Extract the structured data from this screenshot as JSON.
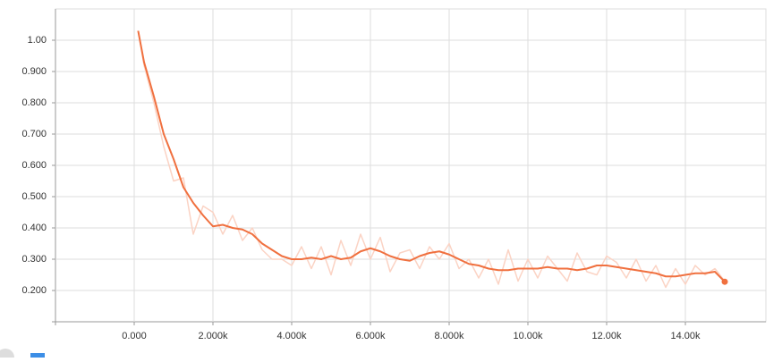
{
  "chart_data": {
    "type": "line",
    "x": [
      100,
      250,
      500,
      750,
      1000,
      1250,
      1500,
      1750,
      2000,
      2250,
      2500,
      2750,
      3000,
      3250,
      3500,
      3750,
      4000,
      4250,
      4500,
      4750,
      5000,
      5250,
      5500,
      5750,
      6000,
      6250,
      6500,
      6750,
      7000,
      7250,
      7500,
      7750,
      8000,
      8250,
      8500,
      8750,
      9000,
      9250,
      9500,
      9750,
      10000,
      10250,
      10500,
      10750,
      11000,
      11250,
      11500,
      11750,
      12000,
      12250,
      12500,
      12750,
      13000,
      13250,
      13500,
      13750,
      14000,
      14250,
      14500,
      14750,
      15000
    ],
    "series": [
      {
        "color": "#fbd3c4",
        "values": [
          1.03,
          0.92,
          0.8,
          0.66,
          0.55,
          0.56,
          0.38,
          0.47,
          0.45,
          0.38,
          0.44,
          0.36,
          0.4,
          0.33,
          0.3,
          0.3,
          0.28,
          0.34,
          0.27,
          0.34,
          0.25,
          0.36,
          0.28,
          0.38,
          0.3,
          0.37,
          0.26,
          0.32,
          0.33,
          0.27,
          0.34,
          0.3,
          0.35,
          0.27,
          0.3,
          0.24,
          0.3,
          0.22,
          0.33,
          0.23,
          0.3,
          0.24,
          0.31,
          0.27,
          0.23,
          0.32,
          0.26,
          0.25,
          0.31,
          0.29,
          0.24,
          0.3,
          0.23,
          0.28,
          0.21,
          0.27,
          0.22,
          0.28,
          0.25,
          0.27,
          0.23
        ]
      },
      {
        "color": "#f0703f",
        "values": [
          1.03,
          0.93,
          0.82,
          0.7,
          0.62,
          0.53,
          0.48,
          0.44,
          0.405,
          0.41,
          0.4,
          0.395,
          0.38,
          0.35,
          0.33,
          0.31,
          0.3,
          0.3,
          0.305,
          0.3,
          0.31,
          0.3,
          0.305,
          0.325,
          0.335,
          0.325,
          0.31,
          0.3,
          0.295,
          0.31,
          0.32,
          0.325,
          0.315,
          0.3,
          0.285,
          0.28,
          0.27,
          0.265,
          0.265,
          0.27,
          0.27,
          0.27,
          0.275,
          0.27,
          0.27,
          0.265,
          0.27,
          0.28,
          0.28,
          0.275,
          0.27,
          0.265,
          0.26,
          0.255,
          0.245,
          0.245,
          0.25,
          0.255,
          0.255,
          0.26,
          0.228
        ]
      }
    ],
    "xlim": [
      -2000,
      16045
    ],
    "ylim": [
      0.1,
      1.1
    ],
    "xticks": [
      {
        "value": 0,
        "label": "0.000"
      },
      {
        "value": 2000,
        "label": "2.000k"
      },
      {
        "value": 4000,
        "label": "4.000k"
      },
      {
        "value": 6000,
        "label": "6.000k"
      },
      {
        "value": 8000,
        "label": "8.000k"
      },
      {
        "value": 10000,
        "label": "10.00k"
      },
      {
        "value": 12000,
        "label": "12.00k"
      },
      {
        "value": 14000,
        "label": "14.00k"
      }
    ],
    "yticks": [
      {
        "value": 0.2,
        "label": "0.200"
      },
      {
        "value": 0.3,
        "label": "0.300"
      },
      {
        "value": 0.4,
        "label": "0.400"
      },
      {
        "value": 0.5,
        "label": "0.500"
      },
      {
        "value": 0.6,
        "label": "0.600"
      },
      {
        "value": 0.7,
        "label": "0.700"
      },
      {
        "value": 0.8,
        "label": "0.800"
      },
      {
        "value": 0.9,
        "label": "0.900"
      },
      {
        "value": 1.0,
        "label": "1.00"
      }
    ],
    "grid": true
  }
}
